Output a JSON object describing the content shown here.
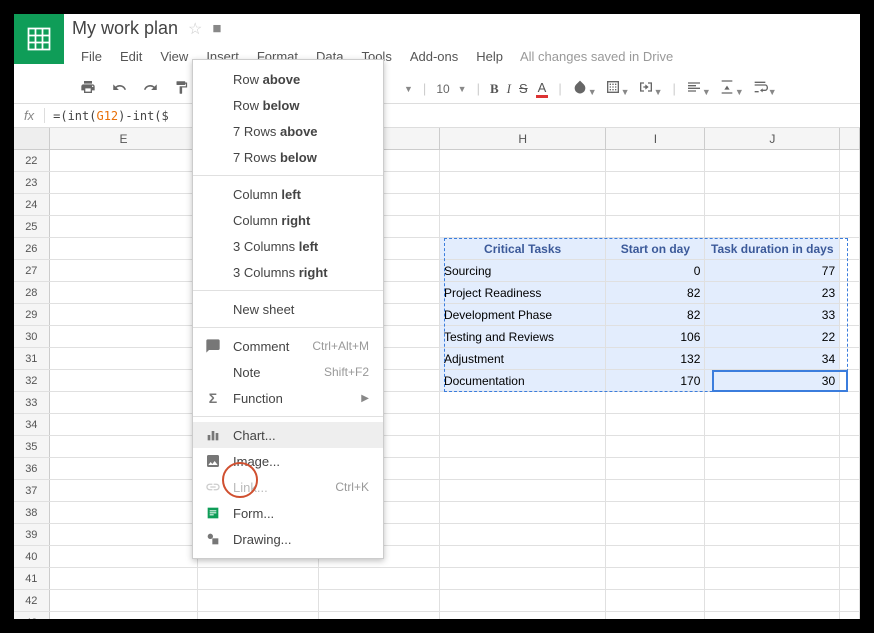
{
  "doc_title": "My work plan",
  "menus": {
    "file": "File",
    "edit": "Edit",
    "view": "View",
    "insert": "Insert",
    "format": "Format",
    "data": "Data",
    "tools": "Tools",
    "addons": "Add-ons",
    "help": "Help"
  },
  "save_msg": "All changes saved in Drive",
  "toolbar": {
    "font_size": "10"
  },
  "formula_prefix": "=(int(",
  "formula_ref": "G12",
  "formula_suffix": ")-int($",
  "columns": {
    "E": "E",
    "H": "H",
    "I": "I",
    "J": "J"
  },
  "col_widths": {
    "E": 150,
    "F": 122,
    "G": 122,
    "H": 168,
    "I": 100,
    "J": 136
  },
  "row_start": 22,
  "row_end": 43,
  "table": {
    "headers": {
      "task": "Critical Tasks",
      "start": "Start on day",
      "duration": "Task duration in days"
    },
    "rows": [
      {
        "task": "Sourcing",
        "start": "0",
        "duration": "77"
      },
      {
        "task": "Project Readiness",
        "start": "82",
        "duration": "23"
      },
      {
        "task": "Development Phase",
        "start": "82",
        "duration": "33"
      },
      {
        "task": "Testing and Reviews",
        "start": "106",
        "duration": "22"
      },
      {
        "task": "Adjustment",
        "start": "132",
        "duration": "34"
      },
      {
        "task": "Documentation",
        "start": "170",
        "duration": "30"
      }
    ]
  },
  "dropdown": {
    "row_above": "Row above",
    "row_below": "Row below",
    "rows_above": "7 Rows above",
    "rows_below": "7 Rows below",
    "col_left": "Column left",
    "col_right": "Column right",
    "cols_left": "3 Columns left",
    "cols_right": "3 Columns right",
    "new_sheet": "New sheet",
    "comment": "Comment",
    "comment_sc": "Ctrl+Alt+M",
    "note": "Note",
    "note_sc": "Shift+F2",
    "function": "Function",
    "chart": "Chart...",
    "image": "Image...",
    "link": "Link...",
    "link_sc": "Ctrl+K",
    "form": "Form...",
    "drawing": "Drawing..."
  },
  "colors": {
    "brand": "#0f9d58",
    "selection_bg": "#e3edfd",
    "selection_border": "#3b7ddd",
    "highlight_ring": "#d05030"
  }
}
